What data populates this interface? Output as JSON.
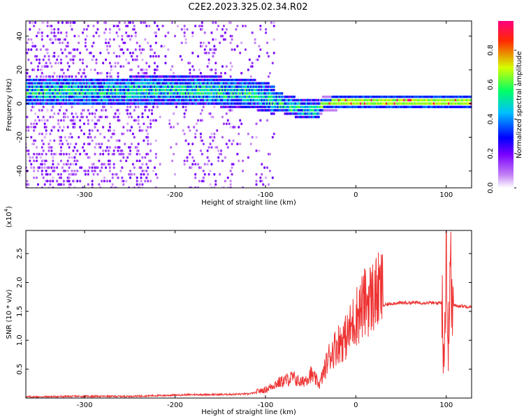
{
  "title": "C2E2.2023.325.02.34.R02",
  "chart_data": [
    {
      "type": "heatmap",
      "xlabel": "Height of straight line (km)",
      "ylabel": "Frequency (Hz)",
      "xlim": [
        -365,
        128
      ],
      "ylim": [
        -50,
        49
      ],
      "xticks": [
        -300,
        -200,
        -100,
        0,
        100
      ],
      "yticks": [
        -40,
        -20,
        0,
        20,
        40
      ],
      "colorbar": {
        "label": "Normalized spectral amplitude",
        "range": [
          0.0,
          0.97
        ],
        "ticks": [
          "0.0",
          "0.2",
          "0.4",
          "0.6",
          "0.8"
        ],
        "tick_values": [
          0.0,
          0.2,
          0.4,
          0.6,
          0.8
        ],
        "colors": [
          "#ffffff",
          "#c27ef5",
          "#7a00ff",
          "#0000ff",
          "#00bfff",
          "#00ff66",
          "#d4ff00",
          "#ff2a00",
          "#ff0080"
        ]
      },
      "band_center": [
        {
          "x": -360,
          "y": 7
        },
        {
          "x": -300,
          "y": 7
        },
        {
          "x": -250,
          "y": 7
        },
        {
          "x": -200,
          "y": 8
        },
        {
          "x": -150,
          "y": 7
        },
        {
          "x": -120,
          "y": 6
        },
        {
          "x": -100,
          "y": 4
        },
        {
          "x": -80,
          "y": 0
        },
        {
          "x": -60,
          "y": -3
        },
        {
          "x": -45,
          "y": -4
        },
        {
          "x": -35,
          "y": 0
        },
        {
          "x": -20,
          "y": 1
        },
        {
          "x": 0,
          "y": 1
        },
        {
          "x": 50,
          "y": 1
        },
        {
          "x": 100,
          "y": 1
        },
        {
          "x": 128,
          "y": 1
        }
      ]
    },
    {
      "type": "line",
      "xlabel": "Height of straight line (km)",
      "ylabel": "SNR (10 * v/v)",
      "scale_label": "(x10",
      "scale_exp": "4",
      "scale_close": ")",
      "xlim": [
        -365,
        128
      ],
      "ylim": [
        0,
        2.9
      ],
      "xticks": [
        -300,
        -200,
        -100,
        0,
        100
      ],
      "yticks": [
        0.5,
        1.0,
        1.5,
        2.0,
        2.5
      ],
      "ytick_labels": [
        "0.5",
        "1.0",
        "1.5",
        "2.0",
        "2.5"
      ],
      "color": "#ee3333",
      "series": [
        {
          "x": [
            -365,
            -300,
            -250,
            -200,
            -180,
            -150,
            -120,
            -100,
            -90,
            -80,
            -70,
            -60,
            -50,
            -40,
            -30,
            -20,
            -10,
            0,
            10,
            20,
            30,
            40,
            60,
            80,
            90,
            95,
            98,
            100,
            102,
            104,
            106,
            110,
            128
          ],
          "values": [
            0.02,
            0.03,
            0.03,
            0.05,
            0.06,
            0.06,
            0.07,
            0.12,
            0.2,
            0.25,
            0.3,
            0.22,
            0.35,
            0.2,
            0.6,
            0.8,
            0.9,
            1.2,
            1.4,
            1.5,
            1.6,
            1.64,
            1.65,
            1.65,
            1.64,
            1.66,
            0.8,
            2.9,
            0.25,
            2.7,
            1.6,
            1.6,
            1.58
          ]
        }
      ]
    }
  ]
}
